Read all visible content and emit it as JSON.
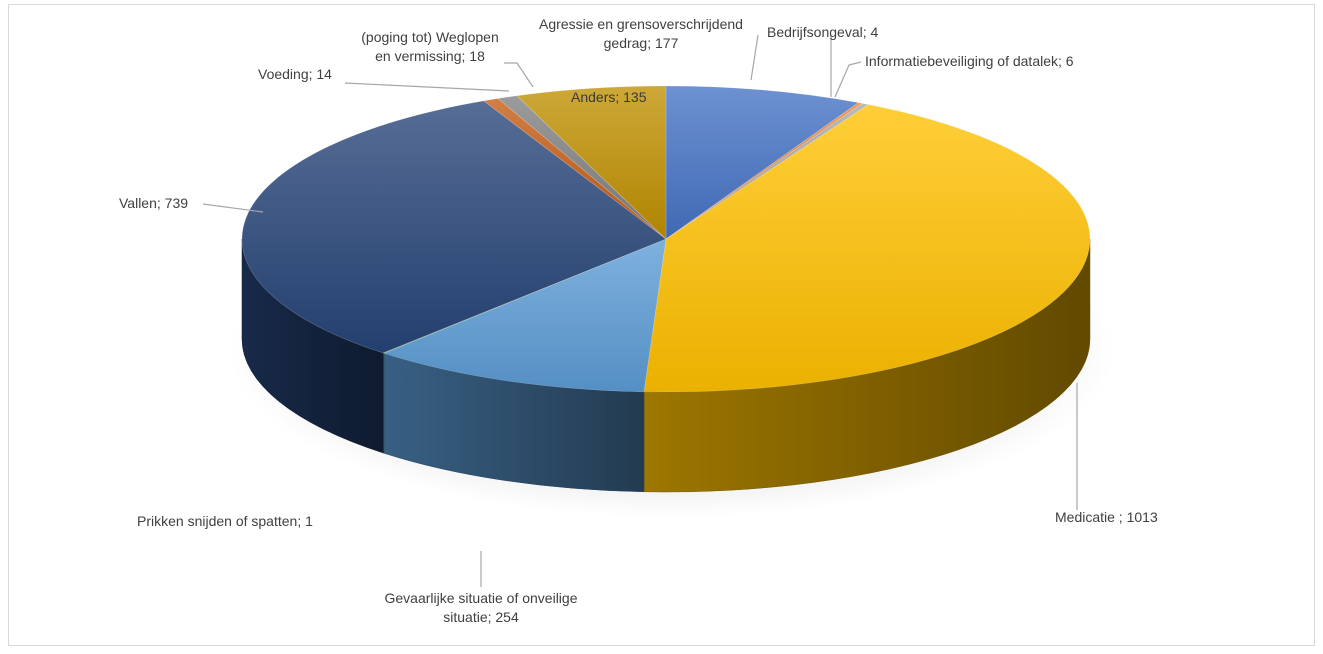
{
  "chart_data": {
    "type": "pie",
    "variant": "3d",
    "title": "",
    "legend": "none",
    "slices": [
      {
        "name": "Agressie en grensoverschrijdend gedrag",
        "value": 177,
        "label": [
          "Agressie en grensoverschrijdend",
          "gedrag; 177"
        ],
        "color": "#4472c4"
      },
      {
        "name": "Bedrijfsongeval",
        "value": 4,
        "label": [
          "Bedrijfsongeval; 4"
        ],
        "color": "#ed7d31"
      },
      {
        "name": "Informatiebeveiliging of datalek",
        "value": 6,
        "label": [
          "Informatiebeveiliging of datalek; 6"
        ],
        "color": "#a5a5a5"
      },
      {
        "name": "Medicatie ",
        "value": 1013,
        "label": [
          "Medicatie ; 1013"
        ],
        "color": "#ffc000"
      },
      {
        "name": "Gevaarlijke situatie of onveilige situatie",
        "value": 254,
        "label": [
          "Gevaarlijke situatie of onveilige",
          "situatie; 254"
        ],
        "color": "#5b9bd5"
      },
      {
        "name": "Prikken snijden of spatten",
        "value": 1,
        "label": [
          "Prikken snijden of spatten; 1"
        ],
        "color": "#70ad47"
      },
      {
        "name": "Vallen",
        "value": 739,
        "label": [
          "Vallen; 739"
        ],
        "color": "#264478"
      },
      {
        "name": "Voeding",
        "value": 14,
        "label": [
          "Voeding; 14"
        ],
        "color": "#c55a11"
      },
      {
        "name": "(poging tot) Weglopen en vermissing",
        "value": 18,
        "label": [
          "(poging tot) Weglopen",
          "en vermissing; 18"
        ],
        "color": "#7f7f7f"
      },
      {
        "name": "Anders",
        "value": 135,
        "label": [
          "Anders; 135"
        ],
        "color": "#bf8f00"
      }
    ]
  }
}
